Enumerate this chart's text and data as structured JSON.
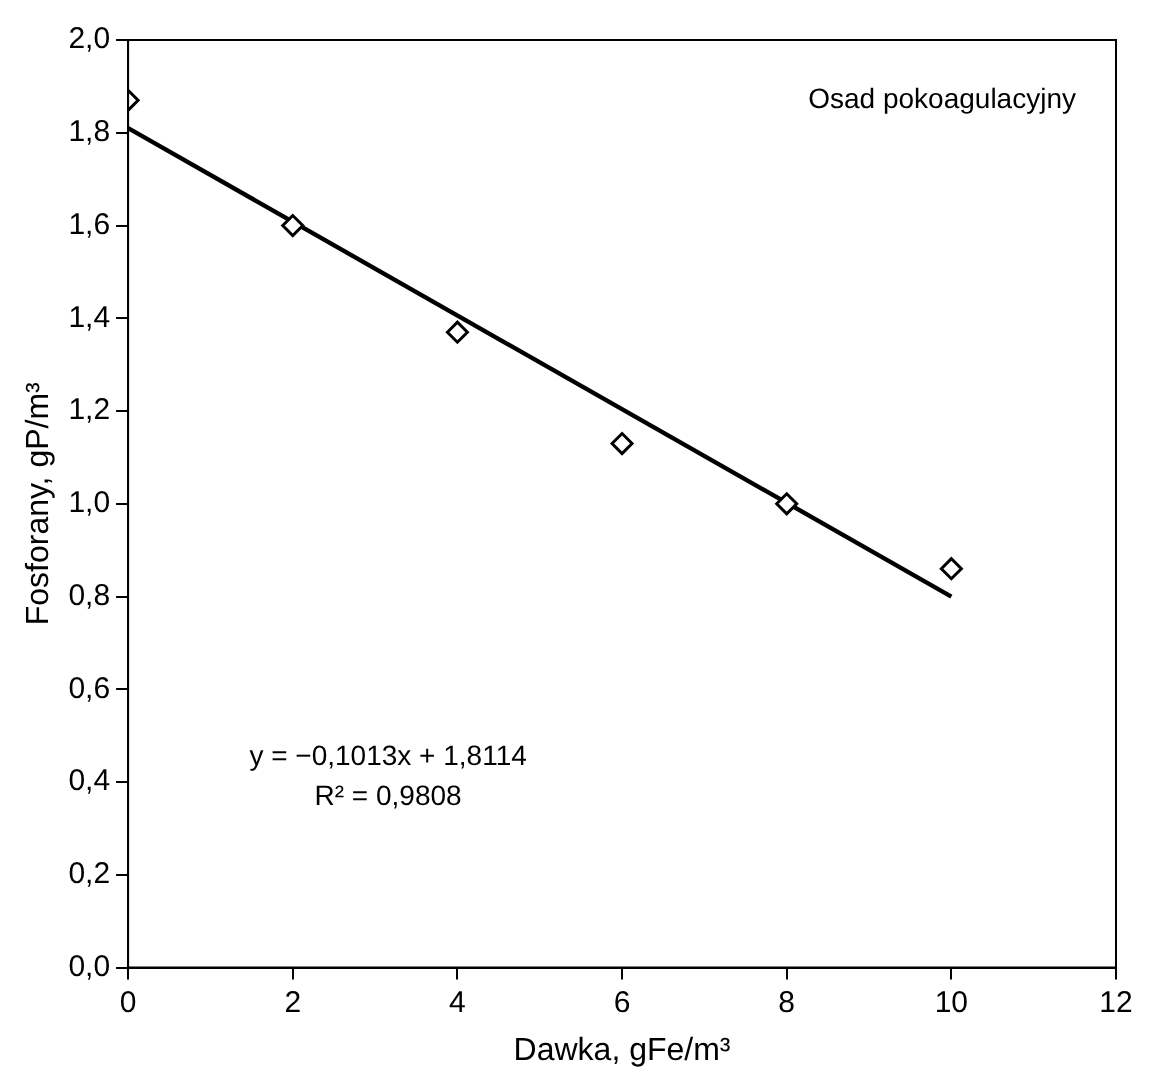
{
  "chart_data": {
    "type": "scatter",
    "xlabel": "Dawka, gFe/m³",
    "ylabel": "Fosforany, gP/m³",
    "x": [
      0,
      2,
      4,
      6,
      8,
      10
    ],
    "series": [
      {
        "color": "#000000",
        "marker": "diamond",
        "values": [
          1.87,
          1.6,
          1.37,
          1.13,
          1.0,
          0.86
        ]
      },
      {
        "type": "line",
        "color": "#000000",
        "marker": "none",
        "line_style": "solid",
        "x": [
          0,
          10
        ],
        "values": [
          1.81,
          0.8
        ]
      }
    ],
    "xlim": [
      0,
      12
    ],
    "xticks": [
      0,
      2,
      4,
      6,
      8,
      10,
      12
    ],
    "ylim": [
      0,
      2
    ],
    "yticks": [
      {
        "value": 0,
        "label": "0,0"
      },
      {
        "value": 0.2,
        "label": "0,2"
      },
      {
        "value": 0.4,
        "label": "0,4"
      },
      {
        "value": 0.6,
        "label": "0,6"
      },
      {
        "value": 0.8,
        "label": "0,8"
      },
      {
        "value": 1,
        "label": "1,0"
      },
      {
        "value": 1.2,
        "label": "1,2"
      },
      {
        "value": 1.4,
        "label": "1,4"
      },
      {
        "value": 1.6,
        "label": "1,6"
      },
      {
        "value": 1.8,
        "label": "1,8"
      },
      {
        "value": 2,
        "label": "2,0"
      }
    ],
    "grid": false,
    "legend": false,
    "annotations": [
      "Osad pokoagulacyjny",
      "y = −0,1013x + 1,8114",
      "R² = 0,9808"
    ]
  }
}
